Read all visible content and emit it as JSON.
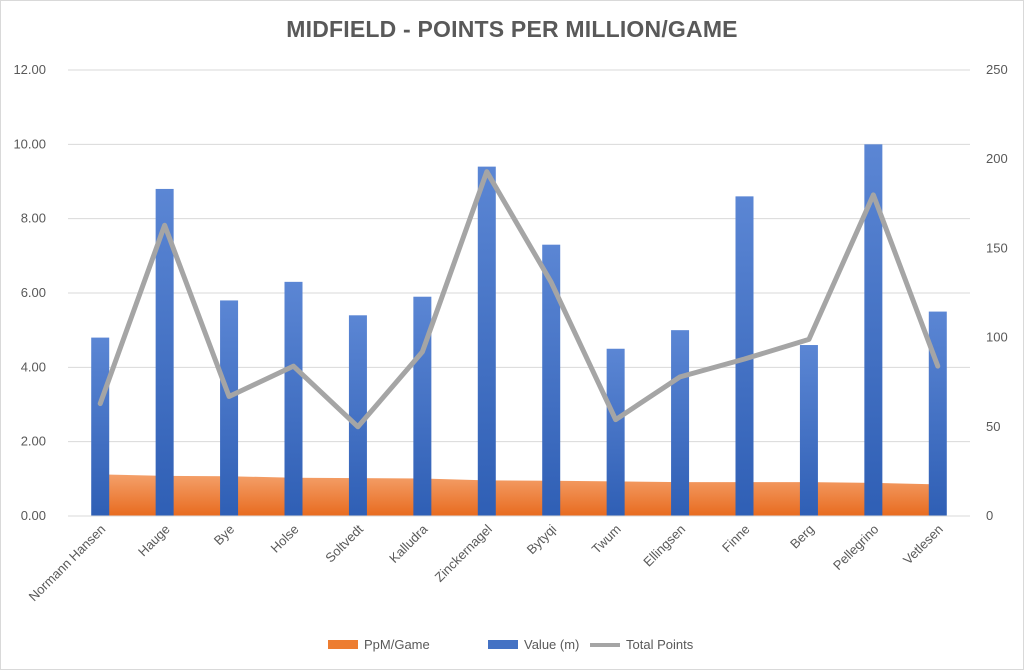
{
  "chart_data": {
    "type": "bar",
    "title": "MIDFIELD - POINTS PER MILLION/GAME",
    "categories": [
      "Normann Hansen",
      "Hauge",
      "Bye",
      "Holse",
      "Soltvedt",
      "Kalludra",
      "Zinckernagel",
      "Bytyqi",
      "Twum",
      "Ellingsen",
      "Finne",
      "Berg",
      "Pellegrino",
      "Vetlesen"
    ],
    "series": [
      {
        "name": "PpM/Game",
        "type": "area",
        "axis": "left",
        "color": "#ED7D31",
        "values": [
          1.12,
          1.08,
          1.07,
          1.03,
          1.02,
          1.01,
          0.96,
          0.95,
          0.93,
          0.91,
          0.91,
          0.91,
          0.89,
          0.85
        ]
      },
      {
        "name": "Value (m)",
        "type": "bar",
        "axis": "left",
        "color": "#4472C4",
        "values": [
          4.8,
          8.8,
          5.8,
          6.3,
          5.4,
          5.9,
          9.4,
          7.3,
          4.5,
          5.0,
          8.6,
          4.6,
          10.0,
          5.5
        ]
      },
      {
        "name": "Total Points",
        "type": "line",
        "axis": "right",
        "color": "#A5A5A5",
        "values": [
          63,
          163,
          67,
          84,
          50,
          92,
          193,
          131,
          54,
          78,
          88,
          99,
          180,
          84
        ]
      }
    ],
    "ylim_left": [
      0,
      12
    ],
    "yticks_left": [
      "0.00",
      "2.00",
      "4.00",
      "6.00",
      "8.00",
      "10.00",
      "12.00"
    ],
    "ylim_right": [
      0,
      250
    ],
    "yticks_right": [
      "0",
      "50",
      "100",
      "150",
      "200",
      "250"
    ],
    "grid": true,
    "legend_position": "bottom",
    "legend": [
      "PpM/Game",
      "Value (m)",
      "Total Points"
    ]
  }
}
